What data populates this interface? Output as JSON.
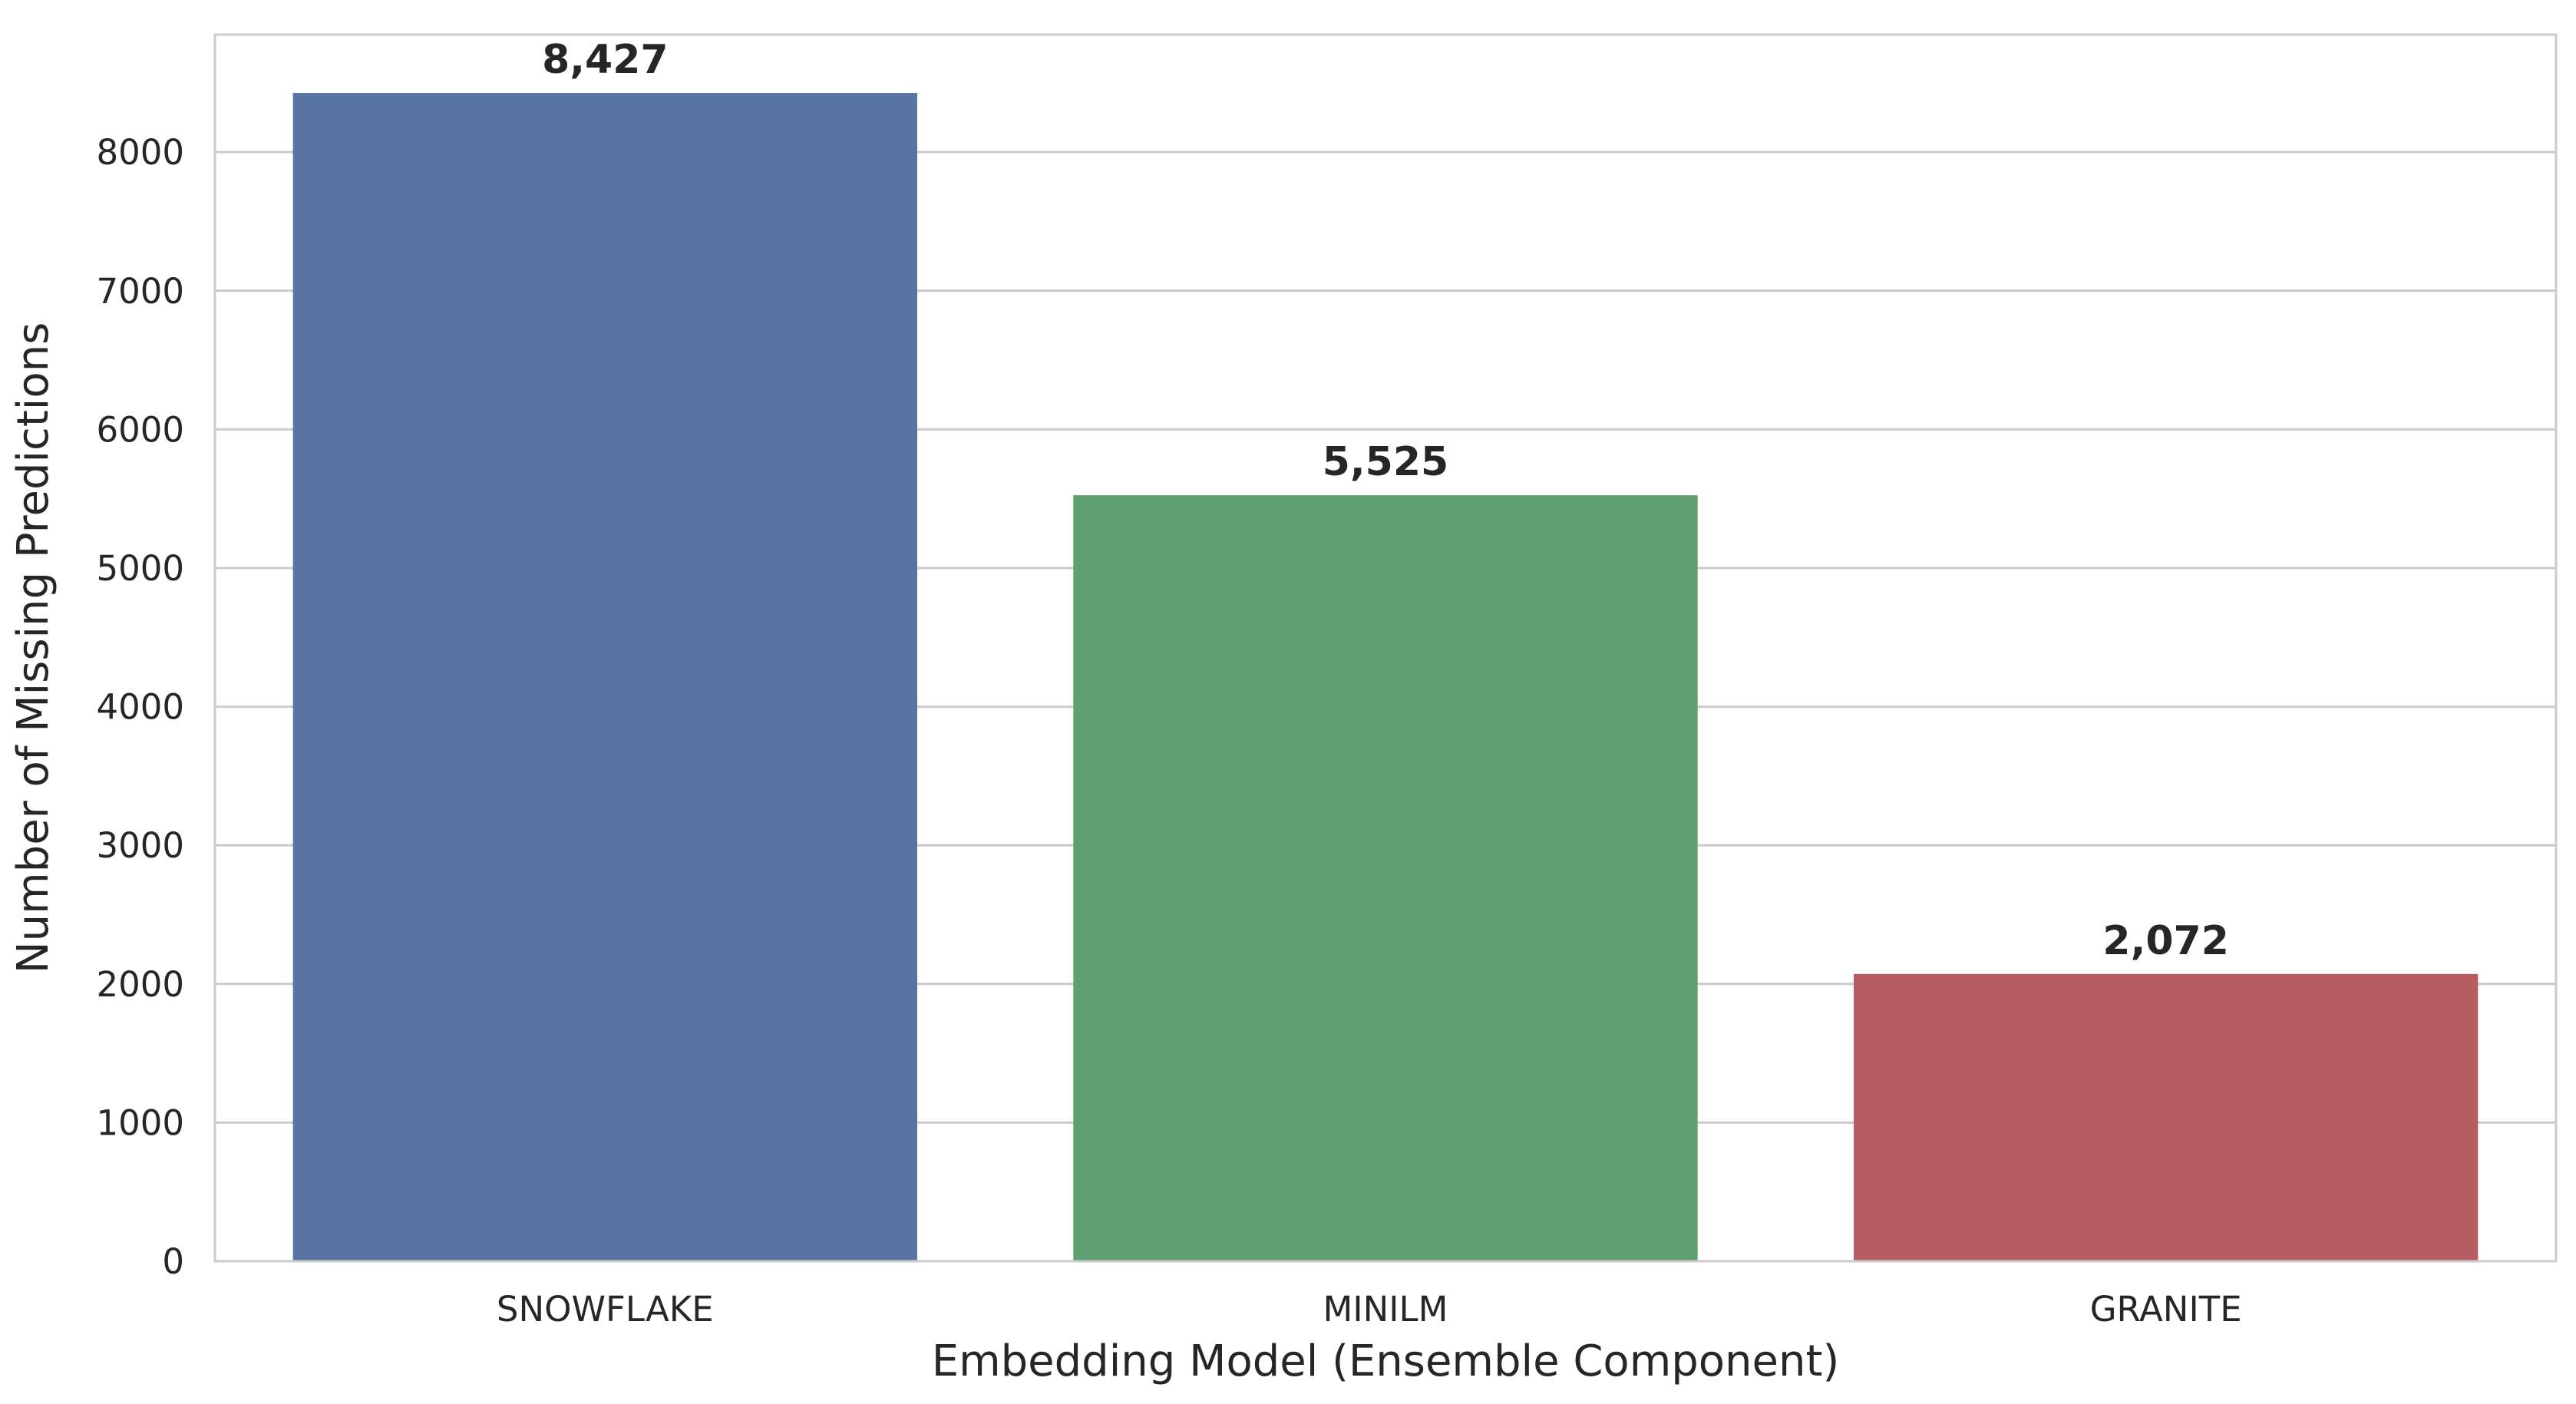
{
  "chart_data": {
    "type": "bar",
    "title": "",
    "xlabel": "Embedding Model (Ensemble Component)",
    "ylabel": "Number of Missing Predictions",
    "categories": [
      "SNOWFLAKE",
      "MINILM",
      "GRANITE"
    ],
    "values": [
      8427,
      5525,
      2072
    ],
    "data_labels": [
      "8,427",
      "5,525",
      "2,072"
    ],
    "colors": [
      "#5875a4",
      "#5f9e6e",
      "#b55d60"
    ],
    "ylim": [
      0,
      8848
    ],
    "yticks": [
      0,
      1000,
      2000,
      3000,
      4000,
      5000,
      6000,
      7000,
      8000
    ],
    "grid": "horizontal",
    "legend": "none"
  }
}
